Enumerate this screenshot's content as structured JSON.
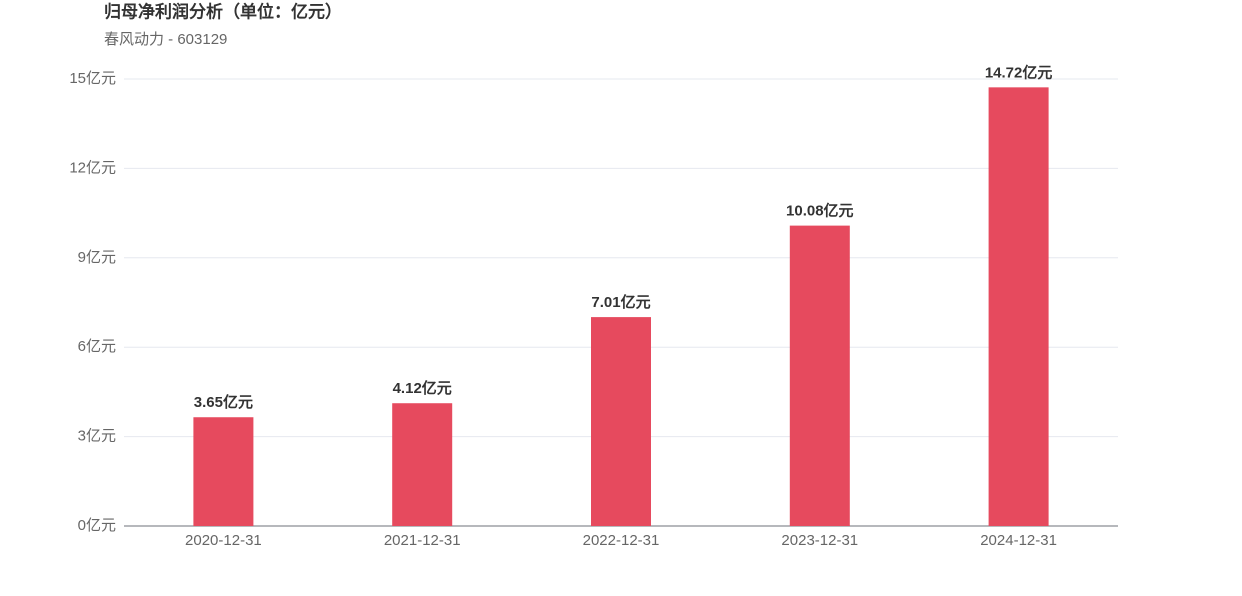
{
  "chart_data": {
    "type": "bar",
    "title": "归母净利润分析（单位：亿元）",
    "subtitle": "春风动力 - 603129",
    "categories": [
      "2020-12-31",
      "2021-12-31",
      "2022-12-31",
      "2023-12-31",
      "2024-12-31"
    ],
    "values": [
      3.65,
      4.12,
      7.01,
      10.08,
      14.72
    ],
    "value_labels": [
      "3.65亿元",
      "4.12亿元",
      "7.01亿元",
      "10.08亿元",
      "14.72亿元"
    ],
    "color": "#e64a5e",
    "ylim": [
      0,
      15
    ],
    "yticks": [
      {
        "value": 0,
        "label": "0亿元"
      },
      {
        "value": 3,
        "label": "3亿元"
      },
      {
        "value": 6,
        "label": "6亿元"
      },
      {
        "value": 9,
        "label": "9亿元"
      },
      {
        "value": 12,
        "label": "12亿元"
      },
      {
        "value": 15,
        "label": "15亿元"
      }
    ],
    "grid": true
  }
}
